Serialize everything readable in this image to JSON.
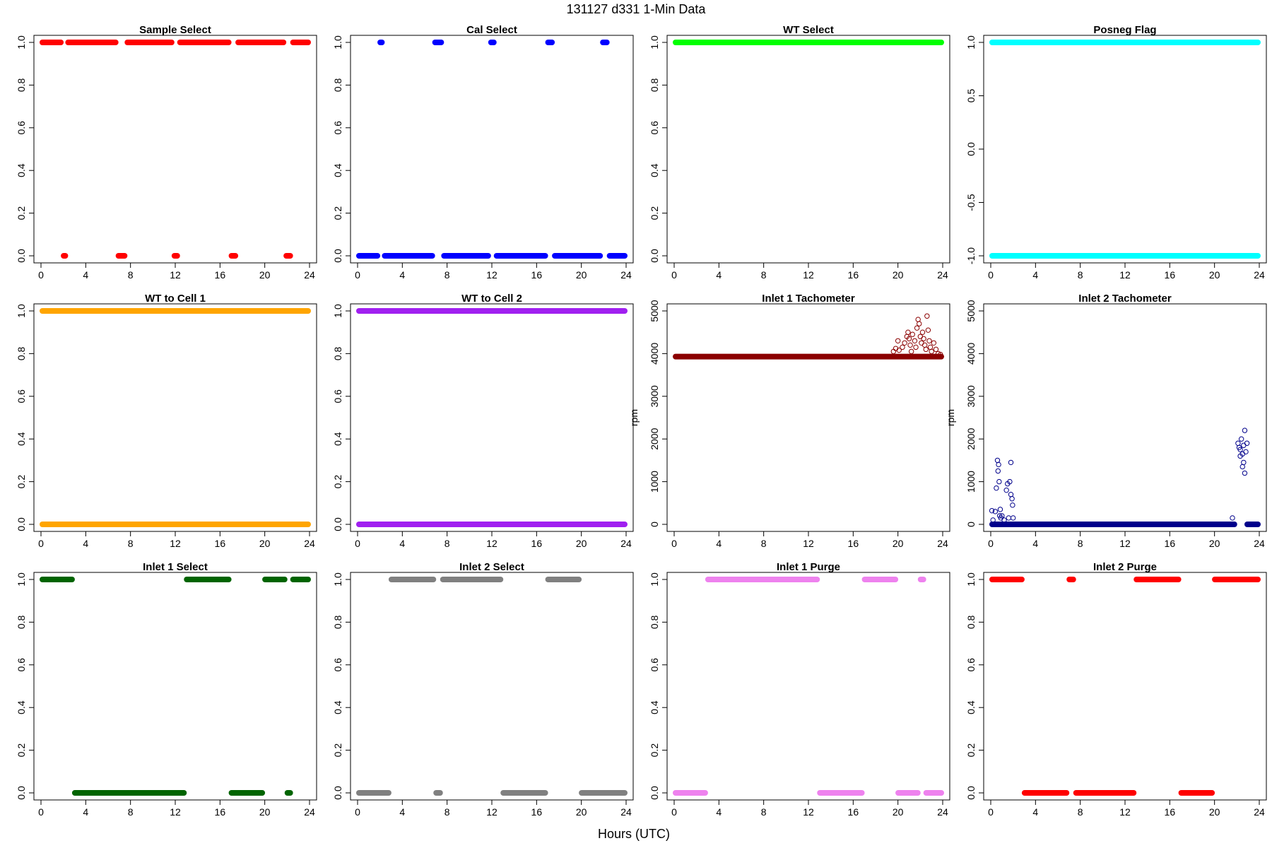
{
  "figure": {
    "title": "131127   d331   1-Min Data",
    "xlabel": "Hours (UTC)"
  },
  "chart_data": [
    {
      "type": "scatter",
      "title": "Sample Select",
      "color": "#ff0000",
      "ylabel": "",
      "xlim": [
        0,
        24
      ],
      "ylim": [
        0,
        1
      ],
      "xticks": [
        0,
        4,
        8,
        12,
        16,
        20,
        24
      ],
      "yticks": [
        "0.0",
        "0.2",
        "0.4",
        "0.6",
        "0.8",
        "1.0"
      ],
      "segments": [
        {
          "y": 1,
          "from": 0,
          "to": 1.9
        },
        {
          "y": 0,
          "from": 1.9,
          "to": 2.3
        },
        {
          "y": 1,
          "from": 2.3,
          "to": 6.8
        },
        {
          "y": 0,
          "from": 6.8,
          "to": 7.6
        },
        {
          "y": 1,
          "from": 7.6,
          "to": 11.8
        },
        {
          "y": 0,
          "from": 11.8,
          "to": 12.3
        },
        {
          "y": 1,
          "from": 12.3,
          "to": 16.9
        },
        {
          "y": 0,
          "from": 16.9,
          "to": 17.5
        },
        {
          "y": 1,
          "from": 17.5,
          "to": 21.8
        },
        {
          "y": 0,
          "from": 21.8,
          "to": 22.4
        },
        {
          "y": 1,
          "from": 22.4,
          "to": 24
        }
      ]
    },
    {
      "type": "scatter",
      "title": "Cal Select",
      "color": "#0000ff",
      "ylabel": "",
      "xlim": [
        0,
        24
      ],
      "ylim": [
        0,
        1
      ],
      "xticks": [
        0,
        4,
        8,
        12,
        16,
        20,
        24
      ],
      "yticks": [
        "0.0",
        "0.2",
        "0.4",
        "0.6",
        "0.8",
        "1.0"
      ],
      "segments": [
        {
          "y": 0,
          "from": 0,
          "to": 1.9
        },
        {
          "y": 1,
          "from": 1.9,
          "to": 2.3
        },
        {
          "y": 0,
          "from": 2.3,
          "to": 6.8
        },
        {
          "y": 1,
          "from": 6.8,
          "to": 7.6
        },
        {
          "y": 0,
          "from": 7.6,
          "to": 11.8
        },
        {
          "y": 1,
          "from": 11.8,
          "to": 12.3
        },
        {
          "y": 0,
          "from": 12.3,
          "to": 16.9
        },
        {
          "y": 1,
          "from": 16.9,
          "to": 17.5
        },
        {
          "y": 0,
          "from": 17.5,
          "to": 21.8
        },
        {
          "y": 1,
          "from": 21.8,
          "to": 22.4
        },
        {
          "y": 0,
          "from": 22.4,
          "to": 24
        }
      ]
    },
    {
      "type": "scatter",
      "title": "WT Select",
      "color": "#00ff00",
      "ylabel": "",
      "xlim": [
        0,
        24
      ],
      "ylim": [
        0,
        1
      ],
      "xticks": [
        0,
        4,
        8,
        12,
        16,
        20,
        24
      ],
      "yticks": [
        "0.0",
        "0.2",
        "0.4",
        "0.6",
        "0.8",
        "1.0"
      ],
      "segments": [
        {
          "y": 1,
          "from": 0,
          "to": 24
        }
      ]
    },
    {
      "type": "scatter",
      "title": "Posneg Flag",
      "color": "#00ffff",
      "ylabel": "",
      "xlim": [
        0,
        24
      ],
      "ylim": [
        -1,
        1
      ],
      "xticks": [
        0,
        4,
        8,
        12,
        16,
        20,
        24
      ],
      "yticks": [
        "-1.0",
        "-0.5",
        "0.0",
        "0.5",
        "1.0"
      ],
      "segments": [
        {
          "y": 1,
          "from": 0,
          "to": 24
        },
        {
          "y": -1,
          "from": 0,
          "to": 24
        }
      ]
    },
    {
      "type": "scatter",
      "title": "WT to Cell 1",
      "color": "#ffa500",
      "ylabel": "",
      "xlim": [
        0,
        24
      ],
      "ylim": [
        0,
        1
      ],
      "xticks": [
        0,
        4,
        8,
        12,
        16,
        20,
        24
      ],
      "yticks": [
        "0.0",
        "0.2",
        "0.4",
        "0.6",
        "0.8",
        "1.0"
      ],
      "segments": [
        {
          "y": 1,
          "from": 0,
          "to": 24
        },
        {
          "y": 0,
          "from": 0,
          "to": 24
        }
      ]
    },
    {
      "type": "scatter",
      "title": "WT to Cell 2",
      "color": "#a020f0",
      "ylabel": "",
      "xlim": [
        0,
        24
      ],
      "ylim": [
        0,
        1
      ],
      "xticks": [
        0,
        4,
        8,
        12,
        16,
        20,
        24
      ],
      "yticks": [
        "0.0",
        "0.2",
        "0.4",
        "0.6",
        "0.8",
        "1.0"
      ],
      "segments": [
        {
          "y": 1,
          "from": 0,
          "to": 24
        },
        {
          "y": 0,
          "from": 0,
          "to": 24
        }
      ]
    },
    {
      "type": "scatter",
      "title": "Inlet 1 Tachometer",
      "color": "#8b0000",
      "ylabel": "rpm",
      "xlim": [
        0,
        24
      ],
      "ylim": [
        0,
        5000
      ],
      "xticks": [
        0,
        4,
        8,
        12,
        16,
        20,
        24
      ],
      "yticks": [
        "0",
        "1000",
        "2000",
        "3000",
        "4000",
        "5000"
      ],
      "segments": [
        {
          "y": 3930,
          "from": 0,
          "to": 24
        }
      ],
      "points": [
        [
          19.6,
          4050
        ],
        [
          19.8,
          4120
        ],
        [
          20.0,
          4300
        ],
        [
          20.1,
          4080
        ],
        [
          20.4,
          4150
        ],
        [
          20.6,
          4250
        ],
        [
          20.8,
          4400
        ],
        [
          20.9,
          4500
        ],
        [
          21.0,
          4350
        ],
        [
          21.1,
          4200
        ],
        [
          21.2,
          4050
        ],
        [
          21.3,
          4450
        ],
        [
          21.5,
          4300
        ],
        [
          21.6,
          4150
        ],
        [
          21.7,
          4600
        ],
        [
          21.8,
          4800
        ],
        [
          21.9,
          4700
        ],
        [
          22.0,
          4400
        ],
        [
          22.1,
          4250
        ],
        [
          22.2,
          4500
        ],
        [
          22.3,
          4350
        ],
        [
          22.4,
          4200
        ],
        [
          22.5,
          4100
        ],
        [
          22.6,
          4880
        ],
        [
          22.7,
          4550
        ],
        [
          22.8,
          4300
        ],
        [
          22.9,
          4150
        ],
        [
          23.0,
          4050
        ],
        [
          23.2,
          4250
        ],
        [
          23.4,
          4100
        ],
        [
          23.6,
          4000
        ],
        [
          23.8,
          3980
        ]
      ],
      "marker": "open"
    },
    {
      "type": "scatter",
      "title": "Inlet 2 Tachometer",
      "color": "#00008b",
      "ylabel": "rpm",
      "xlim": [
        0,
        24
      ],
      "ylim": [
        0,
        5000
      ],
      "xticks": [
        0,
        4,
        8,
        12,
        16,
        20,
        24
      ],
      "yticks": [
        "0",
        "1000",
        "2000",
        "3000",
        "4000",
        "5000"
      ],
      "segments": [
        {
          "y": 0,
          "from": 0,
          "to": 21.9
        },
        {
          "y": 0,
          "from": 22.8,
          "to": 24
        }
      ],
      "points": [
        [
          0.1,
          320
        ],
        [
          0.2,
          100
        ],
        [
          0.4,
          300
        ],
        [
          0.5,
          850
        ],
        [
          0.6,
          1500
        ],
        [
          0.65,
          1250
        ],
        [
          0.7,
          1400
        ],
        [
          0.75,
          1000
        ],
        [
          0.8,
          200
        ],
        [
          0.85,
          350
        ],
        [
          0.9,
          150
        ],
        [
          1.0,
          200
        ],
        [
          1.2,
          100
        ],
        [
          1.4,
          800
        ],
        [
          1.5,
          950
        ],
        [
          1.6,
          150
        ],
        [
          1.7,
          1000
        ],
        [
          1.8,
          700
        ],
        [
          1.8,
          1450
        ],
        [
          1.9,
          600
        ],
        [
          1.95,
          450
        ],
        [
          2.0,
          150
        ],
        [
          21.6,
          150
        ],
        [
          22.1,
          1900
        ],
        [
          22.2,
          1800
        ],
        [
          22.3,
          1750
        ],
        [
          22.4,
          2000
        ],
        [
          22.5,
          1650
        ],
        [
          22.5,
          1350
        ],
        [
          22.6,
          1850
        ],
        [
          22.7,
          1200
        ],
        [
          22.7,
          2200
        ],
        [
          22.8,
          1700
        ],
        [
          22.9,
          1900
        ],
        [
          22.3,
          1600
        ],
        [
          22.6,
          1450
        ]
      ],
      "marker": "open"
    },
    {
      "type": "scatter",
      "title": "Inlet 1 Select",
      "color": "#006400",
      "ylabel": "",
      "xlim": [
        0,
        24
      ],
      "ylim": [
        0,
        1
      ],
      "xticks": [
        0,
        4,
        8,
        12,
        16,
        20,
        24
      ],
      "yticks": [
        "0.0",
        "0.2",
        "0.4",
        "0.6",
        "0.8",
        "1.0"
      ],
      "segments": [
        {
          "y": 1,
          "from": 0,
          "to": 2.9
        },
        {
          "y": 0,
          "from": 2.9,
          "to": 12.9
        },
        {
          "y": 1,
          "from": 12.9,
          "to": 16.9
        },
        {
          "y": 0,
          "from": 16.9,
          "to": 19.9
        },
        {
          "y": 1,
          "from": 19.9,
          "to": 21.9
        },
        {
          "y": 0,
          "from": 21.9,
          "to": 22.4
        },
        {
          "y": 1,
          "from": 22.4,
          "to": 24
        }
      ]
    },
    {
      "type": "scatter",
      "title": "Inlet 2 Select",
      "color": "#808080",
      "ylabel": "",
      "xlim": [
        0,
        24
      ],
      "ylim": [
        0,
        1
      ],
      "xticks": [
        0,
        4,
        8,
        12,
        16,
        20,
        24
      ],
      "yticks": [
        "0.0",
        "0.2",
        "0.4",
        "0.6",
        "0.8",
        "1.0"
      ],
      "segments": [
        {
          "y": 0,
          "from": 0,
          "to": 2.9
        },
        {
          "y": 1,
          "from": 2.9,
          "to": 6.9
        },
        {
          "y": 0,
          "from": 6.9,
          "to": 7.5
        },
        {
          "y": 1,
          "from": 7.5,
          "to": 12.9
        },
        {
          "y": 0,
          "from": 12.9,
          "to": 16.9
        },
        {
          "y": 1,
          "from": 16.9,
          "to": 19.9
        },
        {
          "y": 0,
          "from": 19.9,
          "to": 24
        }
      ]
    },
    {
      "type": "scatter",
      "title": "Inlet 1 Purge",
      "color": "#ee82ee",
      "ylabel": "",
      "xlim": [
        0,
        24
      ],
      "ylim": [
        0,
        1
      ],
      "xticks": [
        0,
        4,
        8,
        12,
        16,
        20,
        24
      ],
      "yticks": [
        "0.0",
        "0.2",
        "0.4",
        "0.6",
        "0.8",
        "1.0"
      ],
      "segments": [
        {
          "y": 0,
          "from": 0,
          "to": 2.9
        },
        {
          "y": 1,
          "from": 2.9,
          "to": 12.9
        },
        {
          "y": 0,
          "from": 12.9,
          "to": 16.9
        },
        {
          "y": 1,
          "from": 16.9,
          "to": 19.9
        },
        {
          "y": 0,
          "from": 19.9,
          "to": 21.9
        },
        {
          "y": 1,
          "from": 21.9,
          "to": 22.4
        },
        {
          "y": 0,
          "from": 22.4,
          "to": 24
        }
      ]
    },
    {
      "type": "scatter",
      "title": "Inlet 2 Purge",
      "color": "#ff0000",
      "ylabel": "",
      "xlim": [
        0,
        24
      ],
      "ylim": [
        0,
        1
      ],
      "xticks": [
        0,
        4,
        8,
        12,
        16,
        20,
        24
      ],
      "yticks": [
        "0.0",
        "0.2",
        "0.4",
        "0.6",
        "0.8",
        "1.0"
      ],
      "segments": [
        {
          "y": 1,
          "from": 0,
          "to": 2.9
        },
        {
          "y": 0,
          "from": 2.9,
          "to": 6.9
        },
        {
          "y": 1,
          "from": 6.9,
          "to": 7.5
        },
        {
          "y": 0,
          "from": 7.5,
          "to": 12.9
        },
        {
          "y": 1,
          "from": 12.9,
          "to": 16.9
        },
        {
          "y": 0,
          "from": 16.9,
          "to": 19.9
        },
        {
          "y": 1,
          "from": 19.9,
          "to": 24
        }
      ]
    }
  ]
}
